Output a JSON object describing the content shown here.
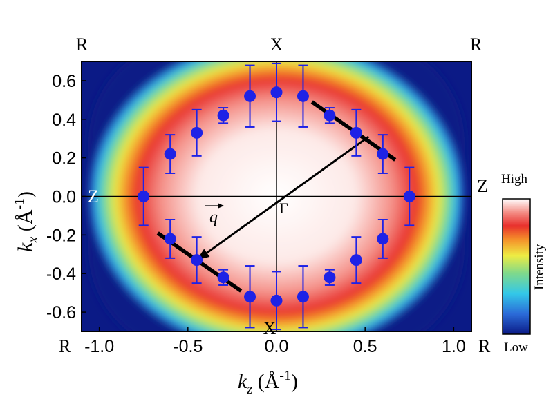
{
  "chart_data": {
    "type": "scatter",
    "xlabel": "k_z (Å^-1)",
    "ylabel": "k_x (Å^-1)",
    "xlim": [
      -1.1,
      1.1
    ],
    "ylim": [
      -0.7,
      0.7
    ],
    "x_ticks": [
      "-1.0",
      "-0.5",
      "0.0",
      "0.5",
      "1.0"
    ],
    "y_ticks": [
      "0.6",
      "0.4",
      "0.2",
      "0.0",
      "-0.2",
      "-0.4",
      "-0.6"
    ],
    "x_tick_values": [
      -1.0,
      -0.5,
      0.0,
      0.5,
      1.0
    ],
    "y_tick_values": [
      0.6,
      0.4,
      0.2,
      0.0,
      -0.2,
      -0.4,
      -0.6
    ],
    "background": "ARPES intensity map (Low to High)",
    "points": [
      {
        "x": -0.75,
        "y": 0.0,
        "err": 0.15
      },
      {
        "x": -0.6,
        "y": 0.22,
        "err": 0.1
      },
      {
        "x": -0.45,
        "y": 0.33,
        "err": 0.12
      },
      {
        "x": -0.3,
        "y": 0.42,
        "err": 0.04
      },
      {
        "x": -0.15,
        "y": 0.52,
        "err": 0.16
      },
      {
        "x": 0.0,
        "y": 0.54,
        "err": 0.15
      },
      {
        "x": 0.15,
        "y": 0.52,
        "err": 0.16
      },
      {
        "x": 0.3,
        "y": 0.42,
        "err": 0.04
      },
      {
        "x": 0.45,
        "y": 0.33,
        "err": 0.12
      },
      {
        "x": 0.6,
        "y": 0.22,
        "err": 0.1
      },
      {
        "x": 0.75,
        "y": 0.0,
        "err": 0.15
      },
      {
        "x": -0.6,
        "y": -0.22,
        "err": 0.1
      },
      {
        "x": -0.45,
        "y": -0.33,
        "err": 0.12
      },
      {
        "x": -0.3,
        "y": -0.42,
        "err": 0.04
      },
      {
        "x": -0.15,
        "y": -0.52,
        "err": 0.16
      },
      {
        "x": 0.0,
        "y": -0.54,
        "err": 0.15
      },
      {
        "x": 0.15,
        "y": -0.52,
        "err": 0.16
      },
      {
        "x": 0.3,
        "y": -0.42,
        "err": 0.04
      },
      {
        "x": 0.45,
        "y": -0.33,
        "err": 0.12
      },
      {
        "x": 0.6,
        "y": -0.22,
        "err": 0.1
      }
    ],
    "nesting_lines": [
      {
        "x1": 0.2,
        "y1": 0.49,
        "x2": 0.67,
        "y2": 0.19
      },
      {
        "x1": -0.67,
        "y1": -0.19,
        "x2": -0.2,
        "y2": -0.49
      }
    ],
    "q_vector": {
      "from": [
        0.52,
        0.31
      ],
      "to": [
        -0.45,
        -0.33
      ],
      "label": "q"
    },
    "symmetry_points": {
      "top": "X",
      "bottom": "X",
      "left": "Z",
      "right": "Z",
      "center": "Γ",
      "corner_tl": "R",
      "corner_tr": "R",
      "corner_bl": "R",
      "corner_br": "R"
    },
    "colorbar": {
      "high": "High",
      "low": "Low",
      "label": "Intensity"
    },
    "colors": {
      "points": "#1e22e6",
      "background": "#0b1a86",
      "lines": "#000000"
    }
  }
}
